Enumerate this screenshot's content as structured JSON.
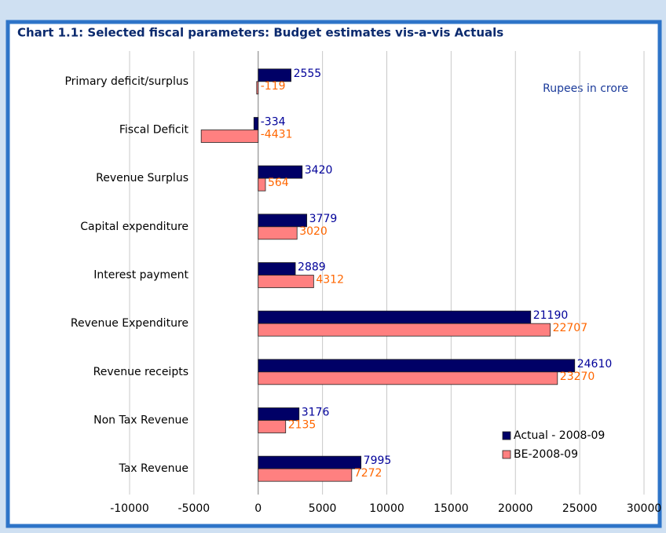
{
  "chart_data": {
    "type": "bar",
    "orientation": "horizontal",
    "title": "Chart 1.1: Selected fiscal parameters: Budget estimates vis-a-vis Actuals",
    "annotation": "Rupees in crore",
    "categories": [
      "Primary deficit/surplus",
      "Fiscal Deficit",
      "Revenue Surplus",
      "Capital expenditure",
      "Interest payment",
      "Revenue Expenditure",
      "Revenue receipts",
      "Non Tax Revenue",
      "Tax Revenue"
    ],
    "series": [
      {
        "name": "Actual - 2008-09",
        "color": "#000066",
        "label_color": "#000099",
        "values": [
          2555,
          -334,
          3420,
          3779,
          2889,
          21190,
          24610,
          3176,
          7995
        ]
      },
      {
        "name": "BE-2008-09",
        "color": "#ff8080",
        "label_color": "#ff6600",
        "values": [
          -119,
          -4431,
          564,
          3020,
          4312,
          22707,
          23270,
          2135,
          7272
        ]
      }
    ],
    "xlim": [
      -10000,
      30000
    ],
    "xticks": [
      -10000,
      -5000,
      0,
      5000,
      10000,
      15000,
      20000,
      25000,
      30000
    ],
    "grid": true,
    "legend": "lower right"
  }
}
